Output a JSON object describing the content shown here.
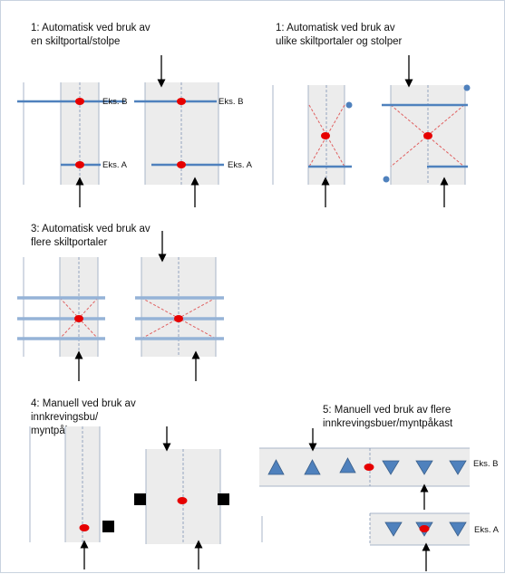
{
  "sections": {
    "s1_left": {
      "line1": "1: Automatisk ved bruk av",
      "line2": "en skiltportal/stolpe"
    },
    "s1_right": {
      "line1": "1: Automatisk ved bruk av",
      "line2": "ulike skiltportaler og stolper"
    },
    "s3": {
      "line1": "3: Automatisk ved bruk av",
      "line2": "flere skiltportaler"
    },
    "s4": {
      "line1": "4: Manuell ved bruk av",
      "line2": "innkrevingsbu/",
      "line3": "myntpåkast"
    },
    "s5": {
      "line1": "5: Manuell ved bruk av flere",
      "line2": "innkrevingsbuer/myntpåkast"
    }
  },
  "examples": {
    "b": "Eks. B",
    "a": "Eks. A"
  },
  "colors": {
    "road": "#ececec",
    "road_edge": "#a9b6c9",
    "center_line": "#7f93b3",
    "portal": "#4f81bd",
    "portal_light": "#95b3d7",
    "car": "#e60000",
    "dash": "#e06060",
    "triangle": "#4f81bd",
    "booth": "#000000",
    "arrow": "#000000"
  }
}
